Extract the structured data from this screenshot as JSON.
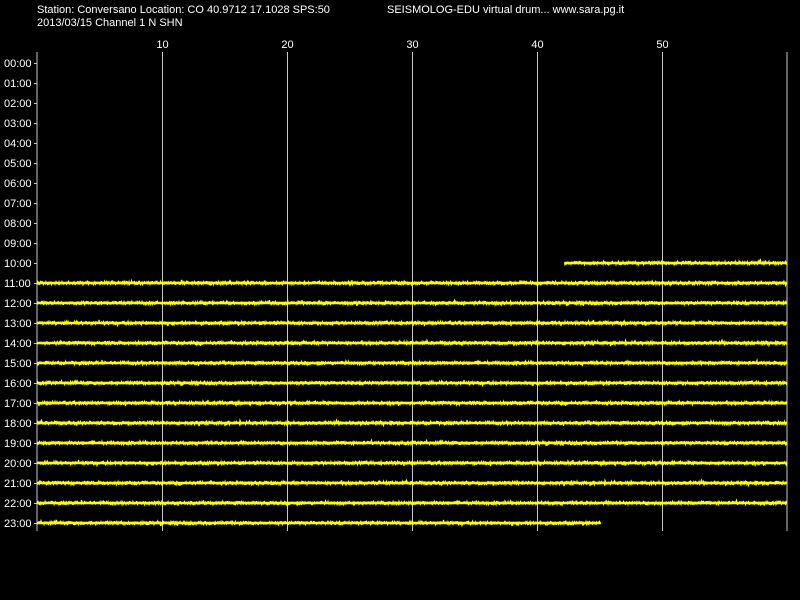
{
  "header": {
    "station_line": "Station: Conversano Location: CO 40.9712 17.1028 SPS:50",
    "date_channel_line": "2013/03/15  Channel 1 N SHN",
    "app_line": "SEISMOLOG-EDU virtual drum... www.sara.pg.it"
  },
  "drum": {
    "background": "#000000",
    "trace_color": "#ffff00",
    "grid_color": "#c8c8c8",
    "text_color": "#ffffff",
    "minute_ticks": [
      "10",
      "20",
      "30",
      "40",
      "50"
    ],
    "minute_range": [
      0,
      60
    ],
    "hour_labels": [
      "00:00",
      "01:00",
      "02:00",
      "03:00",
      "04:00",
      "05:00",
      "06:00",
      "07:00",
      "08:00",
      "09:00",
      "10:00",
      "11:00",
      "12:00",
      "13:00",
      "14:00",
      "15:00",
      "16:00",
      "17:00",
      "18:00",
      "19:00",
      "20:00",
      "21:00",
      "22:00",
      "23:00"
    ],
    "traces": [
      {
        "hour": "10:00",
        "start_minute": 42.2,
        "end_minute": 60
      },
      {
        "hour": "11:00",
        "start_minute": 0,
        "end_minute": 60
      },
      {
        "hour": "12:00",
        "start_minute": 0,
        "end_minute": 60
      },
      {
        "hour": "13:00",
        "start_minute": 0,
        "end_minute": 60
      },
      {
        "hour": "14:00",
        "start_minute": 0,
        "end_minute": 60
      },
      {
        "hour": "15:00",
        "start_minute": 0,
        "end_minute": 60
      },
      {
        "hour": "16:00",
        "start_minute": 0,
        "end_minute": 60
      },
      {
        "hour": "17:00",
        "start_minute": 0,
        "end_minute": 60
      },
      {
        "hour": "18:00",
        "start_minute": 0,
        "end_minute": 60
      },
      {
        "hour": "19:00",
        "start_minute": 0,
        "end_minute": 60
      },
      {
        "hour": "20:00",
        "start_minute": 0,
        "end_minute": 60
      },
      {
        "hour": "21:00",
        "start_minute": 0,
        "end_minute": 60
      },
      {
        "hour": "22:00",
        "start_minute": 0,
        "end_minute": 60
      },
      {
        "hour": "23:00",
        "start_minute": 0,
        "end_minute": 45.1
      }
    ]
  }
}
